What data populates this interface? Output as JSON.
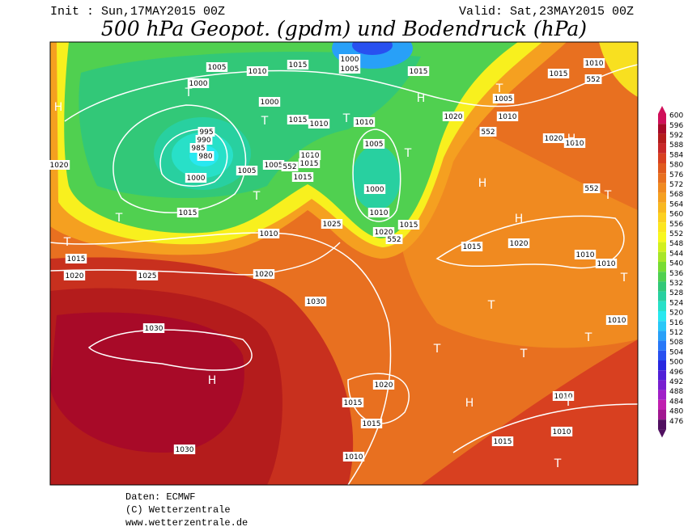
{
  "header": {
    "init": "Init : Sun,17MAY2015 00Z",
    "valid": "Valid: Sat,23MAY2015 00Z",
    "title": "500 hPa Geopot. (gpdm) und Bodendruck (hPa)"
  },
  "map": {
    "isobar_labels": [
      "1005",
      "1000",
      "1010",
      "1015",
      "1000",
      "1005",
      "1015",
      "1010",
      "1015",
      "552",
      "1000",
      "1005",
      "1010",
      "1020",
      "1015",
      "1010",
      "552",
      "995",
      "990",
      "985",
      "980",
      "1010",
      "1020",
      "1010",
      "1005",
      "1005",
      "552",
      "1010",
      "1015",
      "1015",
      "1020",
      "1005",
      "1000",
      "1000",
      "1010",
      "1015",
      "552",
      "1025",
      "1010",
      "1015",
      "1020",
      "552",
      "1015",
      "1020",
      "1015",
      "1010",
      "1010",
      "1020",
      "1025",
      "1020",
      "1030",
      "1030",
      "1010",
      "1020",
      "1015",
      "1010",
      "1015",
      "1010",
      "1015",
      "1030",
      "1010"
    ],
    "pressure_centers": [
      "H",
      "T",
      "T",
      "H",
      "T",
      "T",
      "T",
      "H",
      "T",
      "T",
      "T",
      "T",
      "H",
      "H",
      "T",
      "T",
      "T",
      "T",
      "T",
      "T",
      "H",
      "H",
      "T",
      "T"
    ]
  },
  "legend": {
    "levels": [
      600,
      596,
      592,
      588,
      584,
      580,
      576,
      572,
      568,
      564,
      560,
      556,
      552,
      548,
      544,
      540,
      536,
      532,
      528,
      524,
      520,
      516,
      512,
      508,
      504,
      500,
      496,
      492,
      488,
      484,
      480,
      476
    ],
    "colors": [
      "#d0105a",
      "#a80a28",
      "#b41c1c",
      "#c82828",
      "#d84020",
      "#e05a1e",
      "#e87020",
      "#f08a20",
      "#f5a020",
      "#f8b820",
      "#fcd020",
      "#fce61e",
      "#f8f81e",
      "#d2f01e",
      "#a8e628",
      "#78dc32",
      "#50d050",
      "#32c878",
      "#28d0a0",
      "#28e0c8",
      "#28e8f0",
      "#28c8f8",
      "#28a0f8",
      "#2878f8",
      "#2850f0",
      "#2828e0",
      "#5020d8",
      "#7820d0",
      "#a020c8",
      "#c020b0",
      "#a01890",
      "#501060"
    ]
  },
  "footer": {
    "source": "Daten: ECMWF",
    "copyright": "(C) Wetterzentrale",
    "url": "www.wetterzentrale.de"
  }
}
